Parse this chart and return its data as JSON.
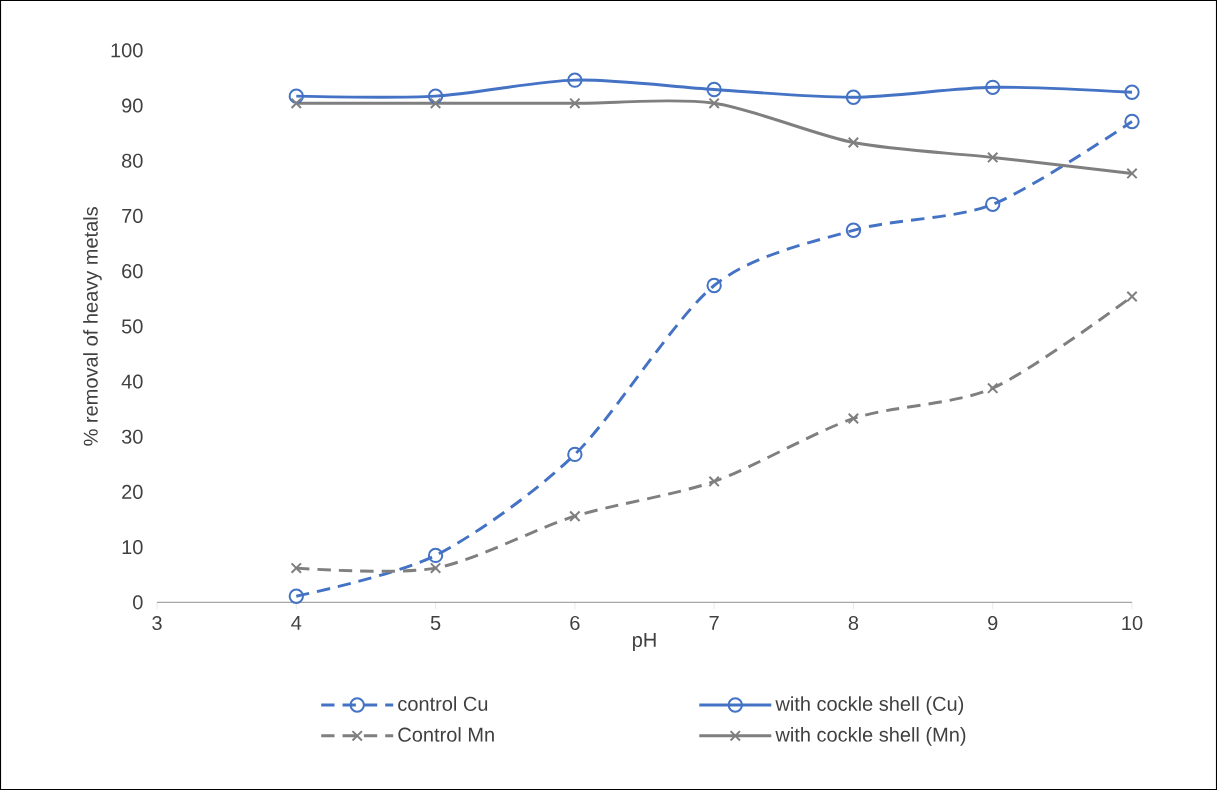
{
  "chart_data": {
    "type": "line",
    "xlabel": "pH",
    "ylabel": "% removal of heavy metals",
    "x": [
      4,
      5,
      6,
      7,
      8,
      9,
      10
    ],
    "series": [
      {
        "name": "control Cu",
        "color": "#4472c4",
        "marker": "circle",
        "line_style": "dashed",
        "values": [
          1.1,
          8.5,
          26.8,
          57.4,
          67.4,
          72.1,
          87.1
        ]
      },
      {
        "name": "with cockle shell (Cu)",
        "color": "#4472c4",
        "marker": "circle",
        "line_style": "solid",
        "values": [
          91.7,
          91.7,
          94.6,
          92.9,
          91.5,
          93.3,
          92.4
        ]
      },
      {
        "name": "Control Mn",
        "color": "#7f7f7f",
        "marker": "cross",
        "line_style": "dashed",
        "values": [
          6.2,
          6.2,
          15.6,
          21.9,
          33.3,
          38.8,
          55.4
        ]
      },
      {
        "name": "with cockle shell (Mn)",
        "color": "#7f7f7f",
        "marker": "cross",
        "line_style": "solid",
        "values": [
          90.4,
          90.4,
          90.4,
          90.4,
          83.3,
          80.6,
          77.7
        ]
      }
    ],
    "xlim": [
      3,
      10
    ],
    "xticks": [
      3,
      4,
      5,
      6,
      7,
      8,
      9,
      10
    ],
    "ylim": [
      0,
      100
    ],
    "yticks": [
      0,
      10,
      20,
      30,
      40,
      50,
      60,
      70,
      80,
      90,
      100
    ],
    "legend": "bottom"
  }
}
